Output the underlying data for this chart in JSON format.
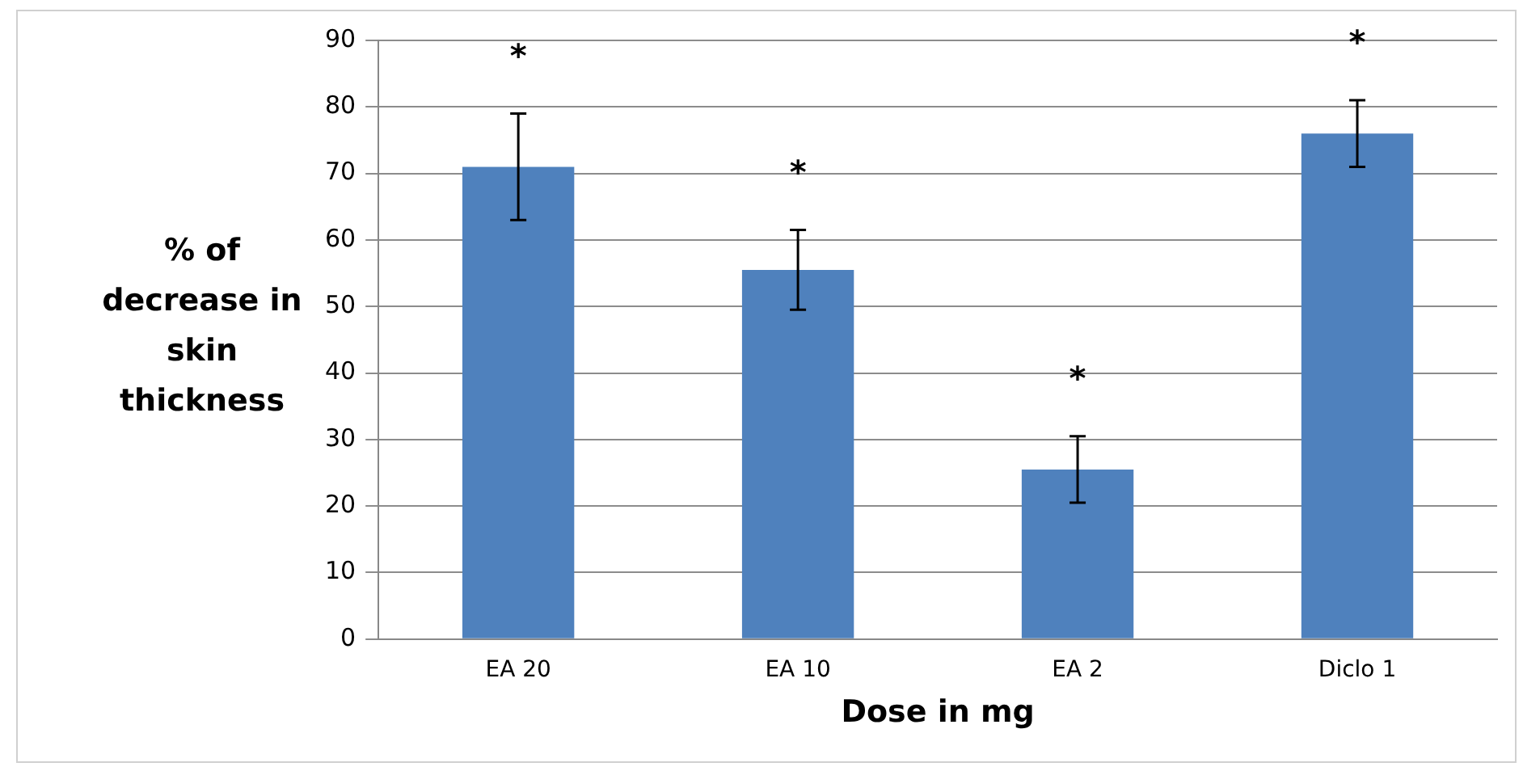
{
  "chart_data": {
    "type": "bar",
    "xlabel": "Dose in mg",
    "ylabel": "% of decrease in skin thickness",
    "categories": [
      "EA 20",
      "EA 10",
      "EA 2",
      "Diclo 1"
    ],
    "values": [
      71,
      55.5,
      25.5,
      76
    ],
    "errors": [
      8,
      6,
      5,
      5
    ],
    "color": "#4f81bd",
    "ylim": [
      0,
      90
    ],
    "yticks": [
      0,
      10,
      20,
      30,
      40,
      50,
      60,
      70,
      80,
      90
    ],
    "grid": "y",
    "annotations": [
      "*",
      "*",
      "*",
      "*"
    ]
  }
}
